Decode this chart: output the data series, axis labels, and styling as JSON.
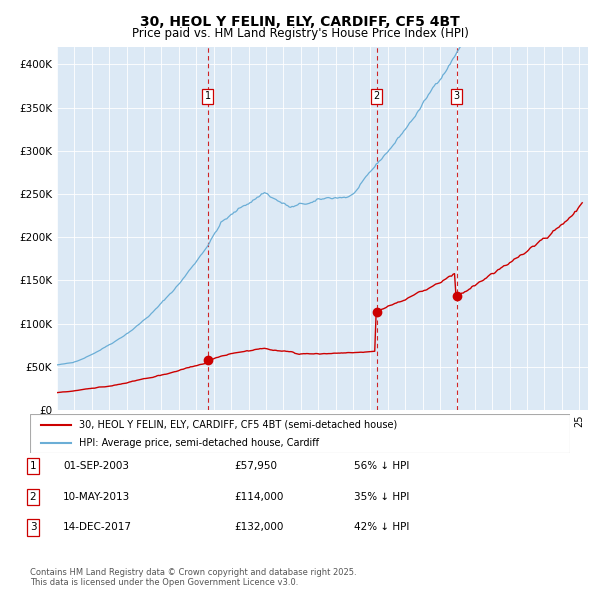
{
  "title": "30, HEOL Y FELIN, ELY, CARDIFF, CF5 4BT",
  "subtitle": "Price paid vs. HM Land Registry's House Price Index (HPI)",
  "title_fontsize": 10,
  "subtitle_fontsize": 8.5,
  "bg_color": "#dce9f5",
  "ylim": [
    0,
    420000
  ],
  "yticks": [
    0,
    50000,
    100000,
    150000,
    200000,
    250000,
    300000,
    350000,
    400000
  ],
  "ytick_labels": [
    "£0",
    "£50K",
    "£100K",
    "£150K",
    "£200K",
    "£250K",
    "£300K",
    "£350K",
    "£400K"
  ],
  "hpi_color": "#6baed6",
  "price_color": "#cc0000",
  "vline_color": "#cc0000",
  "sale1_date": 2003.67,
  "sale1_price": 57950,
  "sale2_date": 2013.36,
  "sale2_price": 114000,
  "sale3_date": 2017.96,
  "sale3_price": 132000,
  "legend_line1": "30, HEOL Y FELIN, ELY, CARDIFF, CF5 4BT (semi-detached house)",
  "legend_line2": "HPI: Average price, semi-detached house, Cardiff",
  "table_rows": [
    [
      "1",
      "01-SEP-2003",
      "£57,950",
      "56% ↓ HPI"
    ],
    [
      "2",
      "10-MAY-2013",
      "£114,000",
      "35% ↓ HPI"
    ],
    [
      "3",
      "14-DEC-2017",
      "£132,000",
      "42% ↓ HPI"
    ]
  ],
  "footer": "Contains HM Land Registry data © Crown copyright and database right 2025.\nThis data is licensed under the Open Government Licence v3.0.",
  "marker_size": 6
}
